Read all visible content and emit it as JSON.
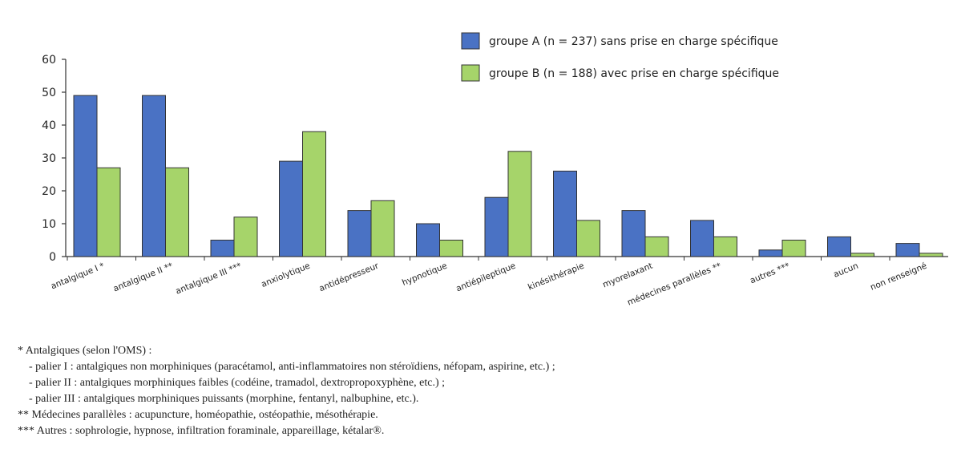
{
  "chart_data": {
    "type": "bar",
    "categories": [
      "antalgique I *",
      "antalgique II **",
      "antalgique III ***",
      "anxiolytique",
      "antidépresseur",
      "hypnotique",
      "antiépileptique",
      "kinésithérapie",
      "myorelaxant",
      "médecines parallèles **",
      "autres ***",
      "aucun",
      "non renseigné"
    ],
    "series": [
      {
        "name": "groupe A (n = 237) sans prise en charge spécifique",
        "color": "#4a72c4",
        "values": [
          49,
          49,
          5,
          29,
          14,
          10,
          18,
          26,
          14,
          11,
          2,
          6,
          4
        ]
      },
      {
        "name": "groupe B (n = 188) avec prise en charge spécifique",
        "color": "#a6d46a",
        "values": [
          27,
          27,
          12,
          38,
          17,
          5,
          32,
          11,
          6,
          6,
          5,
          1,
          1
        ]
      }
    ],
    "ylim": [
      0,
      60
    ],
    "yticks": [
      0,
      10,
      20,
      30,
      40,
      50,
      60
    ],
    "legend_position": "top-right",
    "grid": false
  },
  "footnotes": {
    "line1": "* Antalgiques (selon l'OMS) :",
    "line2": "- palier I : antalgiques non morphiniques (paracétamol, anti-inflammatoires non stéroïdiens, néfopam, aspirine, etc.) ;",
    "line3": "- palier II : antalgiques morphiniques faibles (codéine, tramadol, dextropropoxyphène, etc.) ;",
    "line4": "- palier III : antalgiques morphiniques puissants (morphine, fentanyl, nalbuphine, etc.).",
    "line5": "** Médecines parallèles : acupuncture, homéopathie, ostéopathie, mésothérapie.",
    "line6": "*** Autres : sophrologie, hypnose, infiltration foraminale, appareillage, kétalar®."
  }
}
